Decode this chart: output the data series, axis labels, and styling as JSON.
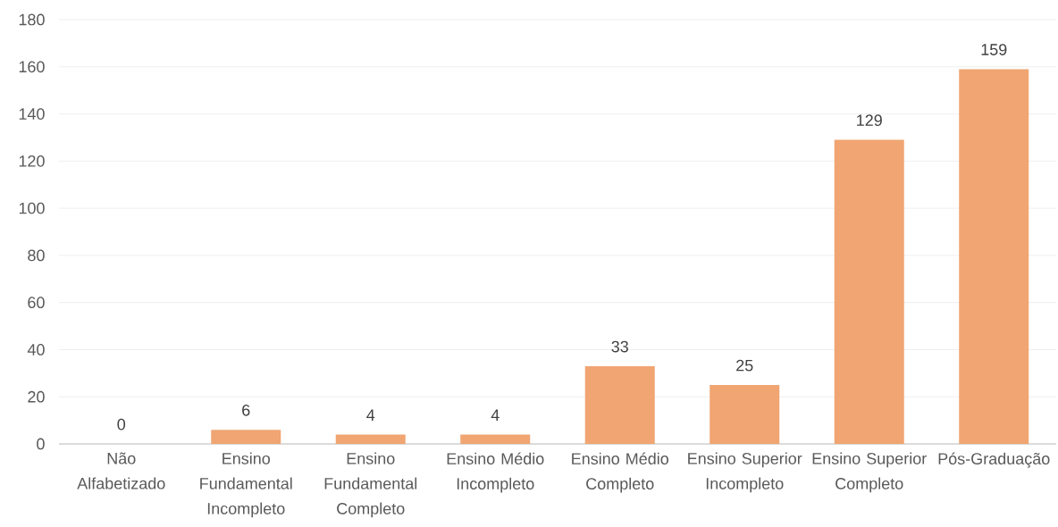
{
  "chart_data": {
    "type": "bar",
    "categories": [
      "Não Alfabetizado",
      "Ensino Fundamental Incompleto",
      "Ensino Fundamental Completo",
      "Ensino Médio Incompleto",
      "Ensino Médio Completo",
      "Ensino Superior Incompleto",
      "Ensino Superior Completo",
      "Pós-Graduação"
    ],
    "values": [
      0,
      6,
      4,
      4,
      33,
      25,
      129,
      159
    ],
    "color": "#f0a572",
    "ylim": [
      0,
      180
    ],
    "yticks": [
      0,
      20,
      40,
      60,
      80,
      100,
      120,
      140,
      160,
      180
    ],
    "grid": "y",
    "data_labels": true
  }
}
